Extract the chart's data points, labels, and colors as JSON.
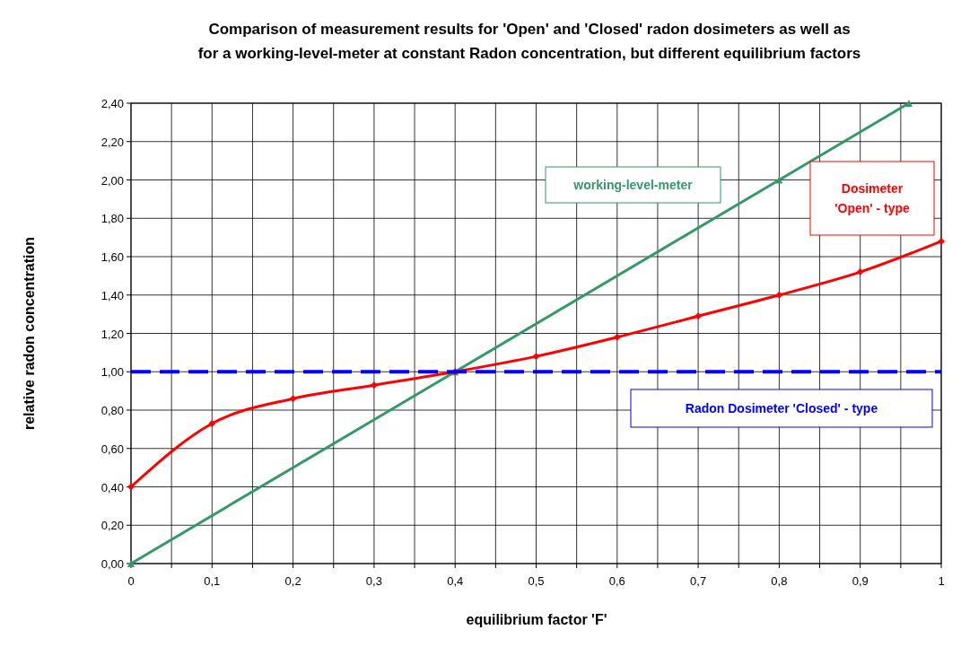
{
  "chart_data": {
    "type": "line",
    "title": "Comparison of  measurement results for 'Open' and 'Closed' radon dosimeters as well as\nfor a working-level-meter at constant Radon concentration, but different equilibrium factors",
    "xlabel": "equilibrium factor 'F'",
    "ylabel": "relative radon concentration",
    "xlim": [
      0,
      1
    ],
    "xticks": [
      {
        "value": 0,
        "label": "0"
      },
      {
        "value": 0.05,
        "label": null
      },
      {
        "value": 0.1,
        "label": "0,1"
      },
      {
        "value": 0.15,
        "label": null
      },
      {
        "value": 0.2,
        "label": "0,2"
      },
      {
        "value": 0.25,
        "label": null
      },
      {
        "value": 0.3,
        "label": "0,3"
      },
      {
        "value": 0.35,
        "label": null
      },
      {
        "value": 0.4,
        "label": "0,4"
      },
      {
        "value": 0.45,
        "label": null
      },
      {
        "value": 0.5,
        "label": "0,5"
      },
      {
        "value": 0.55,
        "label": null
      },
      {
        "value": 0.6,
        "label": "0,6"
      },
      {
        "value": 0.65,
        "label": null
      },
      {
        "value": 0.7,
        "label": "0,7"
      },
      {
        "value": 0.75,
        "label": null
      },
      {
        "value": 0.8,
        "label": "0,8"
      },
      {
        "value": 0.85,
        "label": null
      },
      {
        "value": 0.9,
        "label": "0,9"
      },
      {
        "value": 0.95,
        "label": null
      },
      {
        "value": 1,
        "label": "1"
      }
    ],
    "ylim": [
      0,
      2.4
    ],
    "yticks": [
      {
        "value": 0,
        "label": "0,00"
      },
      {
        "value": 0.2,
        "label": "0,20"
      },
      {
        "value": 0.4,
        "label": "0,40"
      },
      {
        "value": 0.6,
        "label": "0,60"
      },
      {
        "value": 0.8,
        "label": "0,80"
      },
      {
        "value": 1,
        "label": "1,00"
      },
      {
        "value": 1.2,
        "label": "1,20"
      },
      {
        "value": 1.4,
        "label": "1,40"
      },
      {
        "value": 1.6,
        "label": "1,60"
      },
      {
        "value": 1.8,
        "label": "1,80"
      },
      {
        "value": 2,
        "label": "2,00"
      },
      {
        "value": 2.2,
        "label": "2,20"
      },
      {
        "value": 2.4,
        "label": "2,40"
      }
    ],
    "grid": true,
    "series": [
      {
        "name": "working-level-meter",
        "color": "#339966",
        "x": [
          0,
          0.4,
          0.8,
          0.96
        ],
        "values": [
          0,
          1,
          2,
          2.4
        ],
        "marker": "triangle",
        "line_style": "solid"
      },
      {
        "name": "Dosimeter 'Open' - type",
        "color": "#ff0000",
        "x": [
          0,
          0.1,
          0.2,
          0.3,
          0.4,
          0.5,
          0.6,
          0.7,
          0.8,
          0.9,
          1
        ],
        "values": [
          0.4,
          0.73,
          0.86,
          0.93,
          1.0,
          1.08,
          1.18,
          1.29,
          1.4,
          1.52,
          1.68
        ],
        "marker": "diamond",
        "line_style": "solid"
      },
      {
        "name": "Radon Dosimeter 'Closed' - type",
        "color": "#0000ff",
        "x": [
          0,
          1
        ],
        "values": [
          1,
          1
        ],
        "marker": "none",
        "line_style": "dashed"
      }
    ]
  }
}
